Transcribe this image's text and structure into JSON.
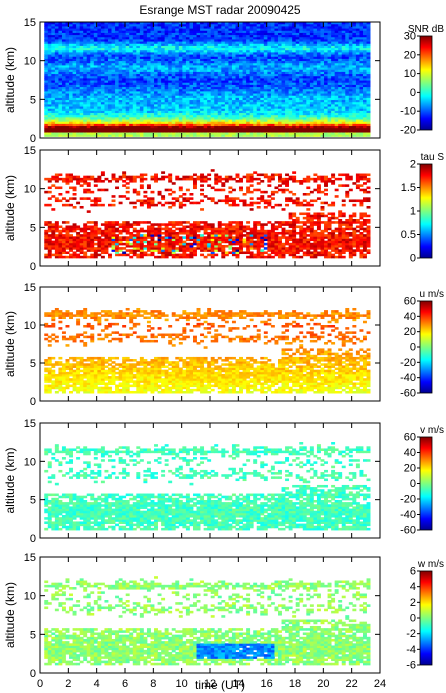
{
  "figure": {
    "title": "Esrange MST radar 20090425"
  },
  "chart_data": [
    {
      "type": "heatmap",
      "title": "Esrange MST radar 20090425",
      "ylabel": "altitude (km)",
      "xlim": [
        0,
        24
      ],
      "ylim": [
        0,
        15
      ],
      "x_ticks": [
        "0",
        "2",
        "4",
        "6",
        "8",
        "10",
        "12",
        "14",
        "16",
        "18",
        "20",
        "22",
        "24"
      ],
      "y_ticks": [
        "0",
        "5",
        "10",
        "15"
      ],
      "colorbar": {
        "label": "SNR dB",
        "range": [
          -20,
          30
        ],
        "ticks": [
          "-20",
          "-10",
          "0",
          "10",
          "20",
          "30"
        ]
      }
    },
    {
      "type": "heatmap",
      "ylabel": "altitude (km)",
      "xlim": [
        0,
        24
      ],
      "ylim": [
        0,
        15
      ],
      "y_ticks": [
        "0",
        "5",
        "10",
        "15"
      ],
      "colorbar": {
        "label": "tau S",
        "range": [
          0,
          2
        ],
        "ticks": [
          "0",
          "0.5",
          "1",
          "1.5",
          "2"
        ]
      }
    },
    {
      "type": "heatmap",
      "ylabel": "altitude (km)",
      "xlim": [
        0,
        24
      ],
      "ylim": [
        0,
        15
      ],
      "y_ticks": [
        "0",
        "5",
        "10",
        "15"
      ],
      "colorbar": {
        "label": "u m/s",
        "range": [
          -60,
          60
        ],
        "ticks": [
          "-60",
          "-40",
          "-20",
          "0",
          "20",
          "40",
          "60"
        ]
      }
    },
    {
      "type": "heatmap",
      "ylabel": "altitude (km)",
      "xlim": [
        0,
        24
      ],
      "ylim": [
        0,
        15
      ],
      "y_ticks": [
        "0",
        "5",
        "10",
        "15"
      ],
      "colorbar": {
        "label": "v m/s",
        "range": [
          -60,
          60
        ],
        "ticks": [
          "-60",
          "-40",
          "-20",
          "0",
          "20",
          "40",
          "60"
        ]
      }
    },
    {
      "type": "heatmap",
      "ylabel": "altitude (km)",
      "xlabel": "time (UT)",
      "xlim": [
        0,
        24
      ],
      "ylim": [
        0,
        15
      ],
      "x_ticks": [
        "0",
        "2",
        "4",
        "6",
        "8",
        "10",
        "12",
        "14",
        "16",
        "18",
        "20",
        "22",
        "24"
      ],
      "y_ticks": [
        "0",
        "5",
        "10",
        "15"
      ],
      "colorbar": {
        "label": "w m/s",
        "range": [
          -6,
          6
        ],
        "ticks": [
          "-6",
          "-4",
          "-2",
          "0",
          "2",
          "4",
          "6"
        ]
      }
    }
  ]
}
